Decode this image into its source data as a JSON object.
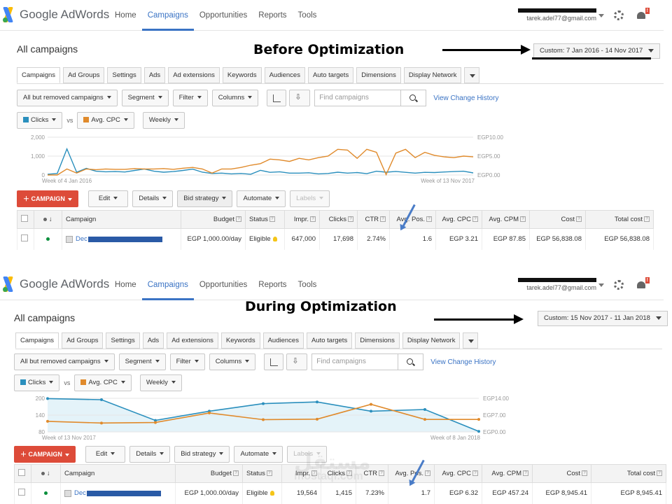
{
  "app": {
    "logo_text": "Google AdWords"
  },
  "nav": [
    "Home",
    "Campaigns",
    "Opportunities",
    "Reports",
    "Tools"
  ],
  "account_email": "tarek.adel77@gmail.com",
  "notification_badge": "!",
  "page_title": "All campaigns",
  "tabs": [
    "Campaigns",
    "Ad Groups",
    "Settings",
    "Ads",
    "Ad extensions",
    "Keywords",
    "Audiences",
    "Auto targets",
    "Dimensions",
    "Display Network"
  ],
  "toolbar": {
    "filter_scope": "All but removed campaigns",
    "segment": "Segment",
    "filter": "Filter",
    "columns": "Columns",
    "search_placeholder": "Find campaigns",
    "view_history": "View Change History",
    "metric1": "Clicks",
    "vs": "vs",
    "metric2": "Avg. CPC",
    "period": "Weekly"
  },
  "actions": {
    "campaign": "CAMPAIGN",
    "edit": "Edit",
    "details": "Details",
    "bid_strategy": "Bid strategy",
    "automate": "Automate",
    "labels": "Labels"
  },
  "table_headers": [
    "Campaign",
    "Budget",
    "Status",
    "Impr.",
    "Clicks",
    "CTR",
    "Avg. Pos.",
    "Avg. CPC",
    "Avg. CPM",
    "Cost",
    "Total cost"
  ],
  "colors": {
    "clicks": "#2a8fbd",
    "cpc": "#e08a2b",
    "accent": "#3a73c4",
    "red": "#dd4b39"
  },
  "before": {
    "annotation": "Before Optimization",
    "date_range": "Custom: 7 Jan 2016 - 14 Nov 2017",
    "chart_left_ticks": [
      "2,000",
      "1,000",
      "0"
    ],
    "chart_right_ticks": [
      "EGP10.00",
      "EGP5.00",
      "EGP0.00"
    ],
    "chart_start": "Week of 4 Jan 2016",
    "chart_end": "Week of 13 Nov 2017",
    "row": {
      "campaign": "Dec",
      "budget": "EGP 1,000.00/day",
      "status": "Eligible",
      "impr": "647,000",
      "clicks": "17,698",
      "ctr": "2.74%",
      "avg_pos": "1.6",
      "avg_cpc": "EGP 3.21",
      "avg_cpm": "EGP 87.85",
      "cost": "EGP 56,838.08",
      "total_cost": "EGP 56,838.08"
    }
  },
  "during": {
    "annotation": "During Optimization",
    "date_range": "Custom: 15 Nov 2017 - 11 Jan 2018",
    "chart_left_ticks": [
      "200",
      "140",
      "80"
    ],
    "chart_right_ticks": [
      "EGP14.00",
      "EGP7.00",
      "EGP0.00"
    ],
    "chart_start": "Week of 13 Nov 2017",
    "chart_end": "Week of 8 Jan 2018",
    "row": {
      "campaign": "Dec",
      "budget": "EGP 1,000.00/day",
      "status": "Eligible",
      "impr": "19,564",
      "clicks": "1,415",
      "ctr": "7.23%",
      "avg_pos": "1.7",
      "avg_cpc": "EGP 6.32",
      "avg_cpm": "EGP 457.24",
      "cost": "EGP 8,945.41",
      "total_cost": "EGP 8,945.41"
    }
  },
  "chart_data": [
    {
      "type": "line",
      "title": "",
      "ylim": [
        0,
        2000
      ],
      "y2lim": [
        0,
        10
      ],
      "series": [
        {
          "name": "Clicks",
          "axis": "left",
          "values": [
            40,
            80,
            1380,
            150,
            350,
            200,
            170,
            180,
            160,
            240,
            320,
            200,
            150,
            180,
            240,
            310,
            150,
            80,
            100,
            60,
            80,
            40,
            250,
            140,
            170,
            100,
            100,
            120,
            60,
            80,
            150,
            100,
            130,
            70,
            200,
            150,
            190,
            140,
            100,
            140,
            130,
            160,
            180,
            200,
            110
          ]
        },
        {
          "name": "Avg. CPC",
          "axis": "right",
          "values": [
            0,
            0,
            1.6,
            0.5,
            1.6,
            1.4,
            1.6,
            1.5,
            1.5,
            1.7,
            1.6,
            1.6,
            1.7,
            1.5,
            1.8,
            2.0,
            1.6,
            0.5,
            1.6,
            1.6,
            2.0,
            2.6,
            3.0,
            4.2,
            4.0,
            3.6,
            4.4,
            4.0,
            4.6,
            5.0,
            6.8,
            6.6,
            4.4,
            6.8,
            6.0,
            0.1,
            5.8,
            6.8,
            4.6,
            6.0,
            5.2,
            4.8,
            4.6,
            5.0,
            4.8
          ]
        }
      ]
    },
    {
      "type": "line",
      "title": "",
      "ylim": [
        80,
        200
      ],
      "y2lim": [
        0,
        14
      ],
      "series": [
        {
          "name": "Clicks",
          "axis": "left",
          "values": [
            199,
            195,
            121,
            154,
            181,
            187,
            154,
            160,
            82
          ]
        },
        {
          "name": "Avg. CPC",
          "axis": "right",
          "values": [
            4.4,
            3.7,
            3.9,
            7.9,
            5.1,
            5.3,
            11.5,
            5.2,
            5.2
          ]
        }
      ]
    }
  ]
}
